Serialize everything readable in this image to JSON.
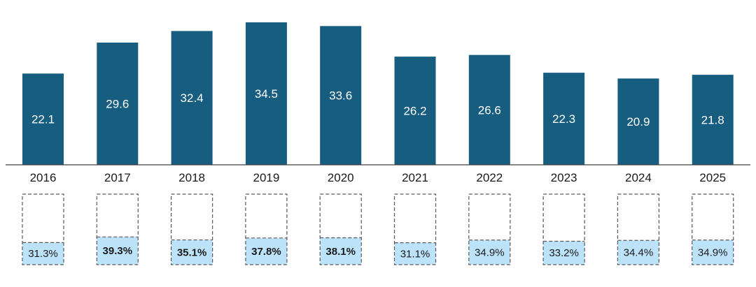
{
  "colors": {
    "bar": "#175d80",
    "share_fill": "#bde3fb",
    "share_box_stroke": "#595959",
    "axis": "#404040"
  },
  "chart_data": [
    {
      "type": "bar",
      "categories": [
        "2016",
        "2017",
        "2018",
        "2019",
        "2020",
        "2021",
        "2022",
        "2023",
        "2024",
        "2025"
      ],
      "values": [
        22.1,
        29.6,
        32.4,
        34.5,
        33.6,
        26.2,
        26.6,
        22.3,
        20.9,
        21.8
      ],
      "value_labels": [
        "22.1",
        "29.6",
        "32.4",
        "34.5",
        "33.6",
        "26.2",
        "26.6",
        "22.3",
        "20.9",
        "21.8"
      ],
      "title": "",
      "xlabel": "",
      "ylabel": "",
      "ylim": [
        0,
        34.5
      ],
      "grid": false,
      "legend": "none"
    },
    {
      "type": "bar",
      "categories": [
        "2016",
        "2017",
        "2018",
        "2019",
        "2020",
        "2021",
        "2022",
        "2023",
        "2024",
        "2025"
      ],
      "values": [
        31.3,
        39.3,
        35.1,
        37.8,
        38.1,
        31.1,
        34.9,
        33.2,
        34.4,
        34.9
      ],
      "value_labels": [
        "31.3%",
        "39.3%",
        "35.1%",
        "37.8%",
        "38.1%",
        "31.1%",
        "34.9%",
        "33.2%",
        "34.4%",
        "34.9%"
      ],
      "bold": [
        false,
        true,
        true,
        true,
        true,
        false,
        false,
        false,
        false,
        false
      ],
      "unit": "%",
      "grid": false,
      "legend": "none"
    }
  ]
}
